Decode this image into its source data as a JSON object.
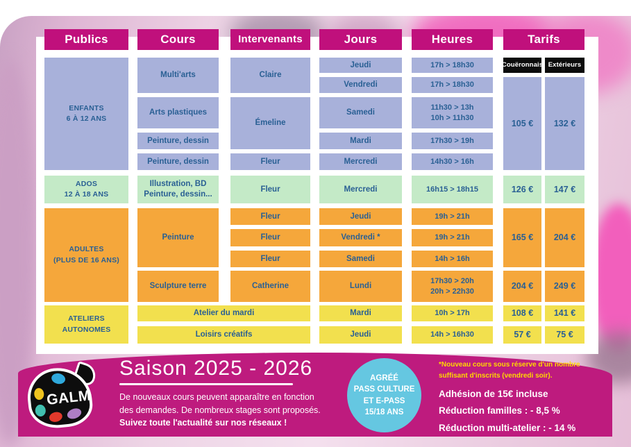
{
  "table": {
    "headers": {
      "publics": "Publics",
      "cours": "Cours",
      "intervenants": "Intervenants",
      "jours": "Jours",
      "heures": "Heures",
      "tarifs": "Tarifs"
    },
    "tarif_labels": {
      "coueronnais": "Couëronnais",
      "exterieurs": "Extérieurs"
    },
    "publics": {
      "enfants": "ENFANTS\n6 À 12 ANS",
      "ados": "ADOS\n12 À 18 ANS",
      "adultes": "ADULTES\n(PLUS DE 16 ANS)",
      "ateliers": "ATELIERS\nAUTONOMES"
    },
    "cours": {
      "multiarts": "Multi'arts",
      "arts_plastiques": "Arts plastiques",
      "peinture_dessin_a": "Peinture, dessin",
      "peinture_dessin_b": "Peinture, dessin",
      "illustration": "Illustration, BD\nPeinture, dessin...",
      "peinture": "Peinture",
      "sculpture_terre": "Sculpture terre",
      "atelier_du_mardi": "Atelier du mardi",
      "loisirs_creatifs": "Loisirs créatifs"
    },
    "intervenants": {
      "claire": "Claire",
      "emeline": "Émeline",
      "fleur_mercredi": "Fleur",
      "fleur_ados": "Fleur",
      "fleur_jeudi": "Fleur",
      "fleur_vendredi": "Fleur",
      "fleur_samedi": "Fleur",
      "catherine": "Catherine"
    },
    "jours": [
      "Jeudi",
      "Vendredi",
      "Samedi",
      "Mardi",
      "Mercredi",
      "Mercredi",
      "Jeudi",
      "Vendredi *",
      "Samedi",
      "Lundi",
      "Mardi",
      "Jeudi"
    ],
    "heures": [
      "17h > 18h30",
      "17h > 18h30",
      "11h30 > 13h\n10h > 11h30",
      "17h30 > 19h",
      "14h30 > 16h",
      "16h15 > 18h15",
      "19h > 21h",
      "19h > 21h",
      "14h > 16h",
      "17h30 > 20h\n20h > 22h30",
      "10h > 17h",
      "14h > 16h30"
    ],
    "tarifs": [
      {
        "coueronnais": "105 €",
        "exterieurs": "132 €"
      },
      {
        "coueronnais": "126 €",
        "exterieurs": "147 €"
      },
      {
        "coueronnais": "165 €",
        "exterieurs": "204 €"
      },
      {
        "coueronnais": "204 €",
        "exterieurs": "249 €"
      },
      {
        "coueronnais": "108 €",
        "exterieurs": "141 €"
      },
      {
        "coueronnais": "57 €",
        "exterieurs": "75 €"
      }
    ]
  },
  "footer": {
    "logo_text": "GALM",
    "season_title": "Saison 2025 - 2026",
    "description": "De nouveaux cours peuvent apparaître en fonction\ndes demandes. De nombreux stages sont proposés.",
    "description_bold": "Suivez toute l'actualité sur nos réseaux !",
    "badge": "AGRÉÉ\nPASS CULTURE\nET E-PASS\n15/18 ANS",
    "footnote": "*Nouveau cours sous réserve d'un nombre\nsuffisant d'inscrits (vendredi soir).",
    "line_adhesion": "Adhésion de 15€ incluse",
    "line_familles": "Réduction familles : - 8,5 %",
    "line_multi": "Réduction multi-atelier : - 14 %"
  },
  "colors": {
    "header_magenta": "#c0107c",
    "footer_magenta": "#be1b7e",
    "cell_blue": "#a8b1da",
    "cell_green": "#c4eac7",
    "cell_orange": "#f5a73b",
    "cell_yellow": "#f2e04e",
    "cell_text_blue": "#2a6094",
    "tarif_label_bg": "#0c0c0c",
    "badge_blue": "#65c7e1",
    "footnote_yellow": "#ffd800"
  }
}
